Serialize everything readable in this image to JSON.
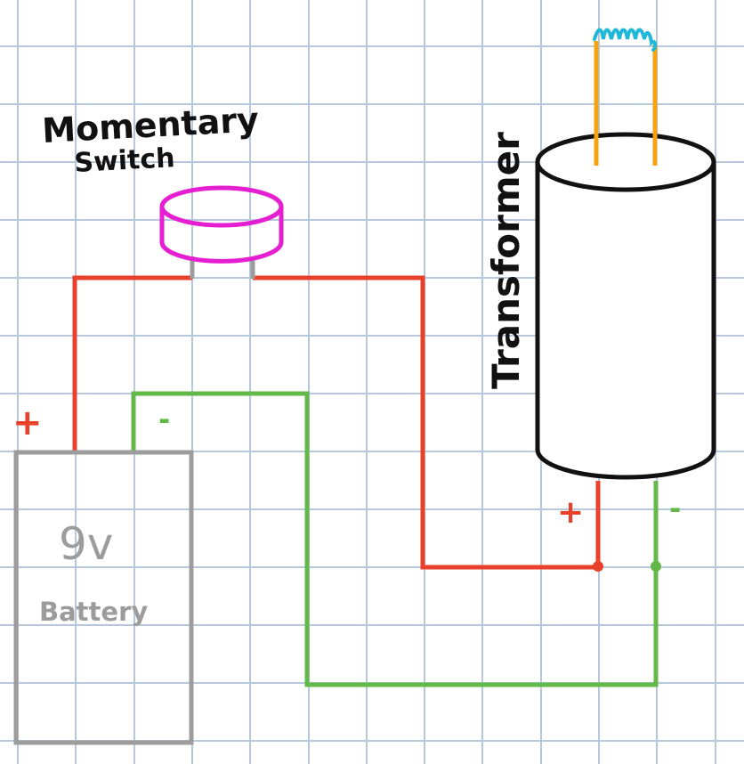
{
  "labels": {
    "switch_line1": "Momentary",
    "switch_line2": "Switch",
    "transformer": "Transformer",
    "battery_voltage": "9v",
    "battery": "Battery",
    "battery_plus": "+",
    "battery_minus": "-",
    "transformer_plus": "+",
    "transformer_minus": "-"
  },
  "colors": {
    "grid": "#b7c8dc",
    "positive_wire": "#e8402a",
    "negative_wire": "#62b94a",
    "switch": "#e61ed2",
    "battery": "#9c9c9c",
    "transformer": "#111111",
    "output_leads": "#f5a312",
    "spark": "#20b8d8",
    "switch_pins": "#9c9c9c"
  }
}
